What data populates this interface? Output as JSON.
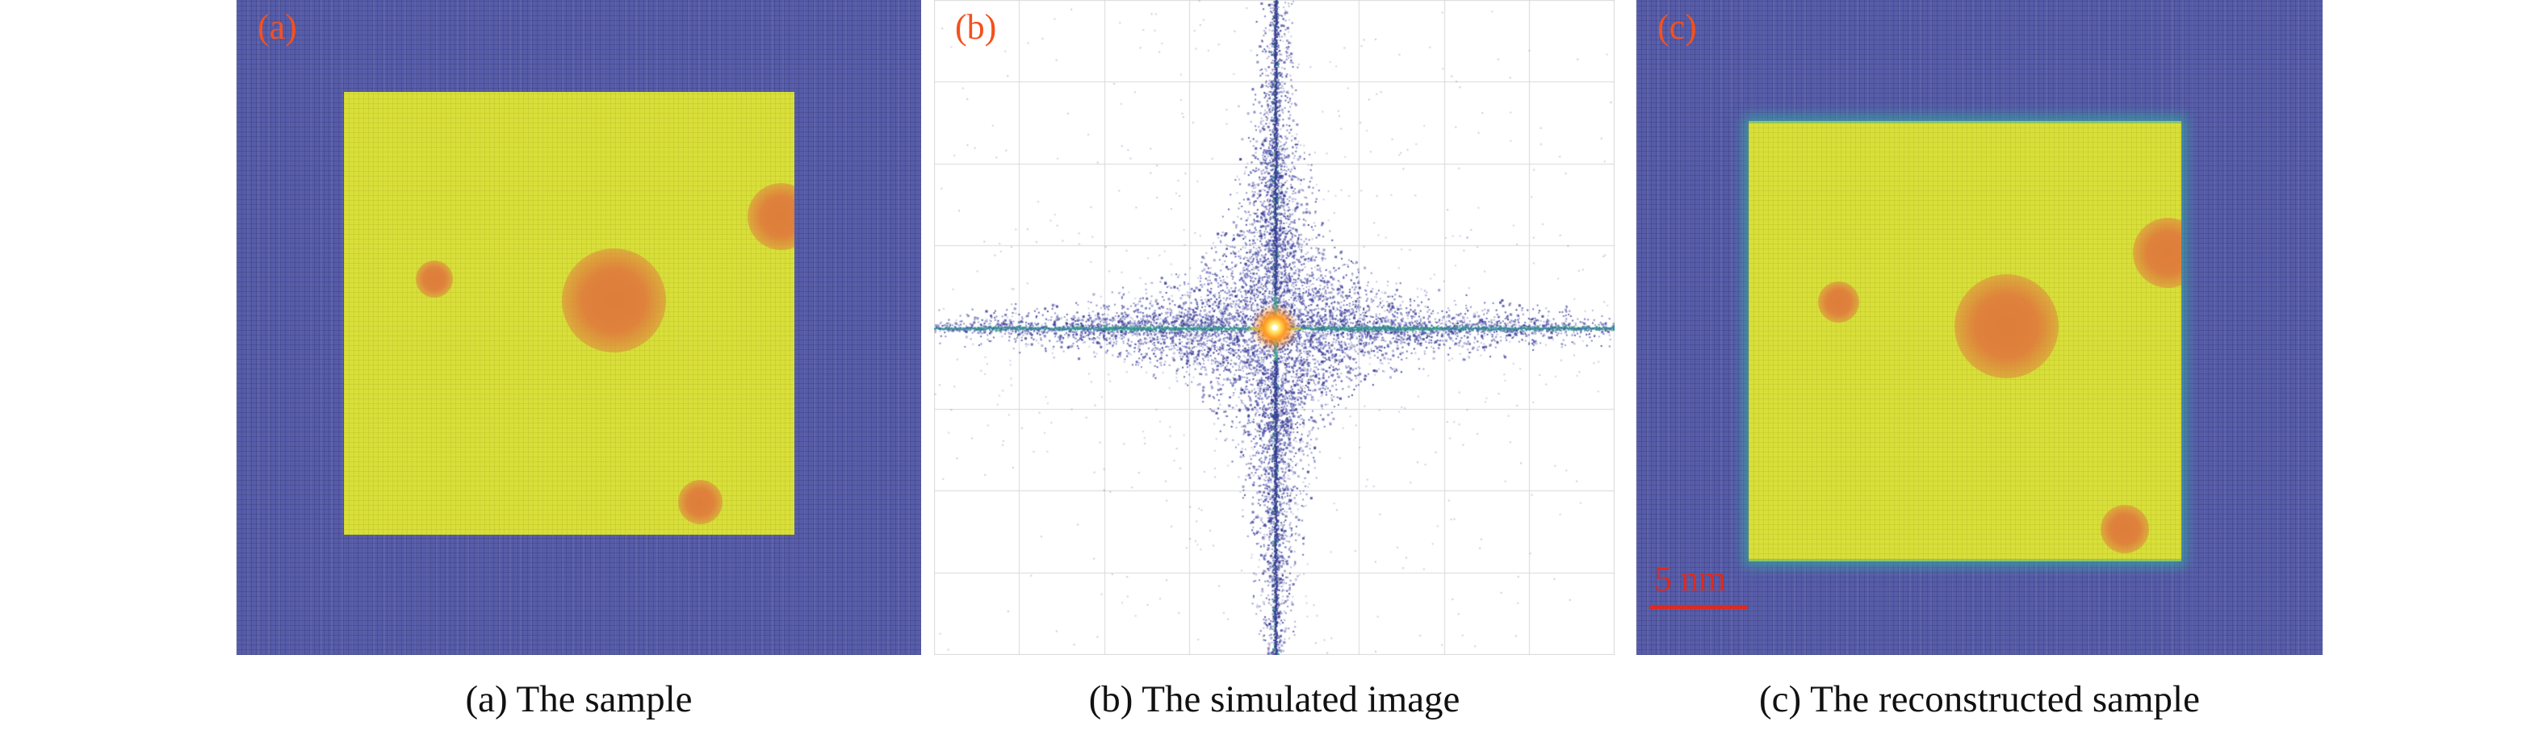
{
  "figure": {
    "panels": [
      {
        "label": "(a)",
        "caption": "(a) The sample"
      },
      {
        "label": "(b)",
        "caption": "(b) The simulated image"
      },
      {
        "label": "(c)",
        "caption": "(c) The reconstructed sample",
        "scale_bar": "5 nm"
      }
    ],
    "colors": {
      "background_purple": "#575ca9",
      "sample_yellow": "#d9df3a",
      "blob_orange": "#df823c",
      "label_orange": "#f4511e",
      "scalebar_red": "#de2a1e",
      "caption_text": "#111111",
      "grid_gray": "#d9d9d9",
      "scatter_indigo": "#3a3f99",
      "scatter_teal": "#2f9e8c",
      "center_orange": "#ff9620",
      "recon_edge_teal": "#36aaa0"
    }
  }
}
